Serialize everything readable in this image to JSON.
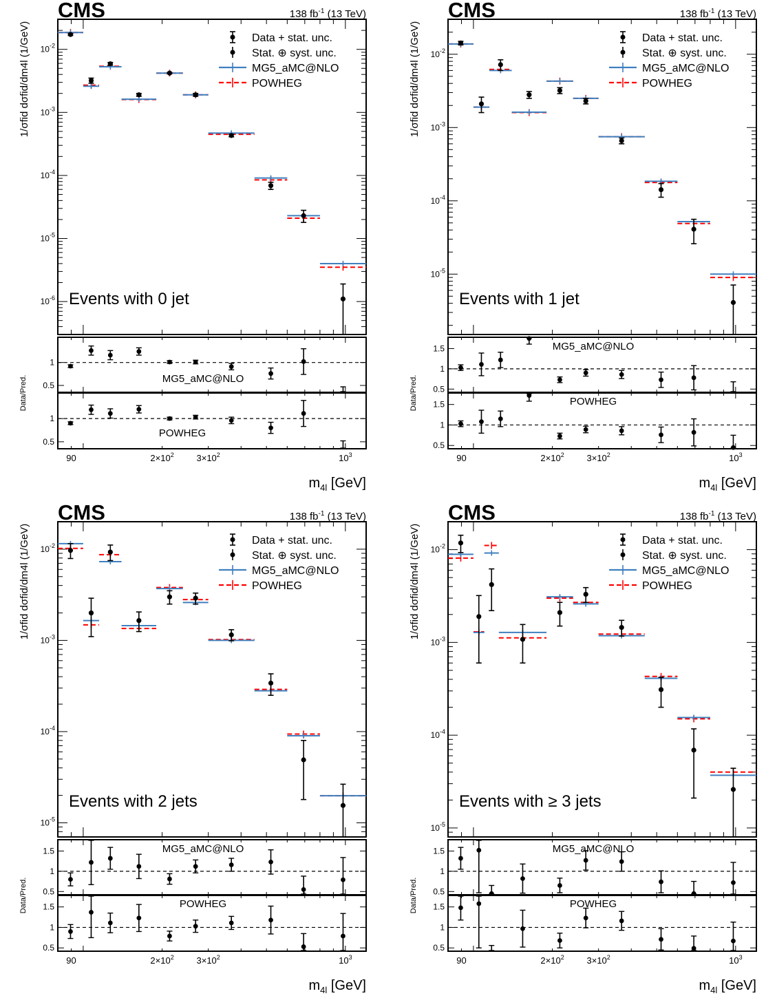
{
  "common": {
    "experiment": "CMS",
    "lumi": "138 fb",
    "lumi_sup": "-1",
    "lumi_tail": " (13 TeV)",
    "legend": {
      "data_stat": "Data + stat. unc.",
      "data_syst": "Stat. ⊕ syst. unc.",
      "mg5": "MG5_aMC@NLO",
      "powheg": "POWHEG"
    },
    "x_axis_label": "m",
    "x_axis_sub": "4l",
    "x_axis_unit": " [GeV]",
    "x_tick_labels": [
      "90",
      "2×10",
      "3×10",
      "10"
    ],
    "x_tick_sup": "2",
    "x_tick_sup_1000": "3",
    "ratio_ylabel": "Data/Pred.",
    "ratio_top_label": "MG5_aMC@NLO",
    "ratio_bottom_label": "POWHEG",
    "colors": {
      "mg5": "#3f7fbf",
      "powheg": "#ff0000",
      "data": "#000000"
    }
  },
  "chart_data": [
    {
      "type": "scatter",
      "title": "Events with 0 jet",
      "xlabel": "m4l [GeV]",
      "ylabel": "1/σfid dσfid/dm4l (1/GeV)",
      "log_x": true,
      "log_y": true,
      "xlim": [
        80,
        1200
      ],
      "ylim": [
        3e-07,
        0.03
      ],
      "y_ticks": [
        {
          "v": 0.01,
          "m": "10",
          "e": "-2"
        },
        {
          "v": 0.001,
          "m": "10",
          "e": "-3"
        },
        {
          "v": 0.0001,
          "m": "10",
          "e": "-4"
        },
        {
          "v": 1e-05,
          "m": "10",
          "e": "-5"
        },
        {
          "v": 1e-06,
          "m": "10",
          "e": "-6"
        }
      ],
      "bins": [
        80,
        100,
        115,
        140,
        190,
        240,
        300,
        450,
        600,
        800,
        1200
      ],
      "data": [
        0.0172,
        0.0032,
        0.0059,
        0.0019,
        0.0042,
        0.0019,
        0.00043,
        6.9e-05,
        2.3e-05,
        1.1e-06
      ],
      "data_err": [
        0.0006,
        0.0003,
        0.0003,
        0.0001,
        0.0001,
        0.0001,
        2e-05,
        9e-06,
        5e-06,
        8e-07
      ],
      "mg5": [
        0.0185,
        0.0026,
        0.0053,
        0.00162,
        0.0042,
        0.0019,
        0.00047,
        9.1e-05,
        2.3e-05,
        4e-06
      ],
      "powheg": [
        0.0185,
        0.0027,
        0.0054,
        0.0016,
        0.0042,
        0.0019,
        0.00045,
        8.5e-05,
        2.1e-05,
        3.5e-06
      ],
      "ratio_mg5": [
        0.92,
        1.26,
        1.16,
        1.24,
        1.01,
        1.01,
        0.91,
        0.76,
        1.02,
        0.27
      ],
      "ratio_mg5_err": [
        0.03,
        0.1,
        0.1,
        0.08,
        0.03,
        0.04,
        0.07,
        0.12,
        0.28,
        0.2
      ],
      "ratio_powheg": [
        0.9,
        1.19,
        1.11,
        1.2,
        1.0,
        1.03,
        0.96,
        0.8,
        1.11,
        0.3
      ],
      "ratio_powheg_err": [
        0.03,
        0.1,
        0.1,
        0.08,
        0.03,
        0.04,
        0.07,
        0.12,
        0.28,
        0.22
      ],
      "ratio_top_label_pos": "bottom",
      "ratio_ylim": [
        0.35,
        1.55
      ],
      "ratio_ticks": [
        "1",
        "0.5"
      ]
    },
    {
      "type": "scatter",
      "title": "Events with 1 jet",
      "xlabel": "m4l [GeV]",
      "ylabel": "1/σfid dσfid/dm4l (1/GeV)",
      "log_x": true,
      "log_y": true,
      "xlim": [
        80,
        1200
      ],
      "ylim": [
        1.5e-06,
        0.03
      ],
      "y_ticks": [
        {
          "v": 0.01,
          "m": "10",
          "e": "-2"
        },
        {
          "v": 0.001,
          "m": "10",
          "e": "-3"
        },
        {
          "v": 0.0001,
          "m": "10",
          "e": "-4"
        },
        {
          "v": 1e-05,
          "m": "10",
          "e": "-5"
        }
      ],
      "bins": [
        80,
        100,
        115,
        140,
        190,
        240,
        300,
        450,
        600,
        800,
        1200
      ],
      "data": [
        0.0142,
        0.0021,
        0.0072,
        0.0028,
        0.0032,
        0.0023,
        0.00066,
        0.000142,
        4.1e-05,
        4.1e-06
      ],
      "data_err": [
        0.0008,
        0.0005,
        0.0012,
        0.0003,
        0.0003,
        0.0002,
        6e-05,
        3e-05,
        1.5e-05,
        3e-06
      ],
      "mg5": [
        0.0138,
        0.0019,
        0.006,
        0.00162,
        0.0043,
        0.0025,
        0.00075,
        0.000185,
        5.2e-05,
        1e-05
      ],
      "powheg": [
        0.0138,
        0.0019,
        0.0062,
        0.0016,
        0.0043,
        0.0025,
        0.00075,
        0.000178,
        4.9e-05,
        9e-06
      ],
      "ratio_mg5": [
        1.03,
        1.11,
        1.22,
        1.75,
        0.73,
        0.9,
        0.86,
        0.73,
        0.78,
        0.4
      ],
      "ratio_mg5_err": [
        0.07,
        0.28,
        0.19,
        0.14,
        0.07,
        0.08,
        0.1,
        0.19,
        0.3,
        0.28
      ],
      "ratio_powheg": [
        1.03,
        1.08,
        1.15,
        1.72,
        0.73,
        0.89,
        0.86,
        0.76,
        0.82,
        0.45
      ],
      "ratio_powheg_err": [
        0.07,
        0.28,
        0.19,
        0.14,
        0.07,
        0.08,
        0.1,
        0.19,
        0.33,
        0.3
      ],
      "ratio_top_label_pos": "top",
      "ratio_ylim": [
        0.42,
        1.78
      ],
      "ratio_ticks": [
        "1.5",
        "1",
        "0.5"
      ]
    },
    {
      "type": "scatter",
      "title": "Events with 2 jets",
      "xlabel": "m4l [GeV]",
      "ylabel": "1/σfid dσfid/dm4l (1/GeV)",
      "log_x": true,
      "log_y": true,
      "xlim": [
        80,
        1200
      ],
      "ylim": [
        7e-06,
        0.02
      ],
      "y_ticks": [
        {
          "v": 0.01,
          "m": "10",
          "e": "-2"
        },
        {
          "v": 0.001,
          "m": "10",
          "e": "-3"
        },
        {
          "v": 0.0001,
          "m": "10",
          "e": "-4"
        },
        {
          "v": 1e-05,
          "m": "10",
          "e": "-5"
        }
      ],
      "bins": [
        80,
        100,
        115,
        140,
        190,
        240,
        300,
        450,
        600,
        800,
        1200
      ],
      "data": [
        0.0097,
        0.002,
        0.0093,
        0.00165,
        0.003,
        0.0029,
        0.00115,
        0.00034,
        4.9e-05,
        1.55e-05
      ],
      "data_err": [
        0.0018,
        0.0009,
        0.0018,
        0.0004,
        0.0005,
        0.0004,
        0.00016,
        9e-05,
        3.1e-05,
        1.1e-05
      ],
      "mg5": [
        0.0115,
        0.00165,
        0.0073,
        0.00145,
        0.0037,
        0.0026,
        0.001,
        0.00028,
        9e-05,
        1.98e-05
      ],
      "powheg": [
        0.0102,
        0.00148,
        0.0087,
        0.00135,
        0.0038,
        0.0028,
        0.00102,
        0.00029,
        9.4e-05,
        1.98e-05
      ],
      "ratio_mg5": [
        0.8,
        1.22,
        1.32,
        1.12,
        0.81,
        1.12,
        1.16,
        1.23,
        0.55,
        0.79
      ],
      "ratio_mg5_err": [
        0.16,
        0.55,
        0.27,
        0.3,
        0.13,
        0.16,
        0.16,
        0.3,
        0.33,
        0.55
      ],
      "ratio_powheg": [
        0.9,
        1.37,
        1.11,
        1.23,
        0.79,
        1.03,
        1.11,
        1.18,
        0.53,
        0.79
      ],
      "ratio_powheg_err": [
        0.17,
        0.62,
        0.24,
        0.33,
        0.12,
        0.15,
        0.16,
        0.34,
        0.32,
        0.55
      ],
      "ratio_top_label_pos": "top",
      "ratio_ylim": [
        0.42,
        1.78
      ],
      "ratio_ticks": [
        "1.5",
        "1",
        "0.5"
      ]
    },
    {
      "type": "scatter",
      "title": "Events with ≥ 3 jets",
      "xlabel": "m4l [GeV]",
      "ylabel": "1/σfid dσfid/dm4l (1/GeV)",
      "log_x": true,
      "log_y": true,
      "xlim": [
        80,
        1200
      ],
      "ylim": [
        8e-06,
        0.02
      ],
      "y_ticks": [
        {
          "v": 0.01,
          "m": "10",
          "e": "-2"
        },
        {
          "v": 0.001,
          "m": "10",
          "e": "-3"
        },
        {
          "v": 0.0001,
          "m": "10",
          "e": "-4"
        },
        {
          "v": 1e-05,
          "m": "10",
          "e": "-5"
        }
      ],
      "bins": [
        80,
        100,
        110,
        125,
        190,
        240,
        300,
        450,
        600,
        800,
        1200
      ],
      "data": [
        0.0118,
        0.0019,
        0.0042,
        0.00108,
        0.0021,
        0.0033,
        0.00145,
        0.00031,
        6.9e-05,
        2.6e-05
      ],
      "data_err": [
        0.0025,
        0.0013,
        0.002,
        0.00048,
        0.0006,
        0.0006,
        0.00028,
        0.00011,
        4.8e-05,
        1.8e-05
      ],
      "mg5": [
        0.0089,
        0.00128,
        0.0092,
        0.00128,
        0.0031,
        0.0026,
        0.00118,
        0.00041,
        0.000155,
        3.7e-05
      ],
      "powheg": [
        0.0081,
        0.0013,
        0.0111,
        0.00112,
        0.003,
        0.0027,
        0.00123,
        0.00043,
        0.00015,
        4e-05
      ],
      "ratio_mg5": [
        1.32,
        1.52,
        0.45,
        0.82,
        0.65,
        1.27,
        1.24,
        0.74,
        0.45,
        0.72
      ],
      "ratio_mg5_err": [
        0.27,
        1.05,
        0.2,
        0.36,
        0.18,
        0.24,
        0.24,
        0.27,
        0.3,
        0.5
      ],
      "ratio_powheg": [
        1.48,
        1.58,
        0.38,
        0.97,
        0.68,
        1.23,
        1.16,
        0.71,
        0.49,
        0.67
      ],
      "ratio_powheg_err": [
        0.3,
        1.08,
        0.18,
        0.45,
        0.18,
        0.24,
        0.23,
        0.26,
        0.3,
        0.46
      ],
      "ratio_top_label_pos": "top",
      "ratio_ylim": [
        0.42,
        1.78
      ],
      "ratio_ticks": [
        "1.5",
        "1",
        "0.5"
      ]
    }
  ]
}
